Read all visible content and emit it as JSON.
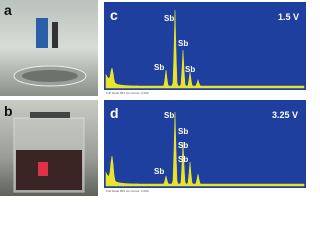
{
  "panels": [
    {
      "label": "a"
    },
    {
      "label": "b"
    },
    {
      "label": "c",
      "voltage": "1.5 V",
      "peaks": [
        "Sb",
        "Sb",
        "Sb",
        "Sb"
      ],
      "footer": "Full Scale 863 cts Cursor: 0.000"
    },
    {
      "label": "d",
      "voltage": "3.25 V",
      "peaks": [
        "Sb",
        "Sb",
        "Sb",
        "Sb",
        "Sb"
      ],
      "footer": "Full Scale 863 cts Cursor: 0.000"
    }
  ]
}
